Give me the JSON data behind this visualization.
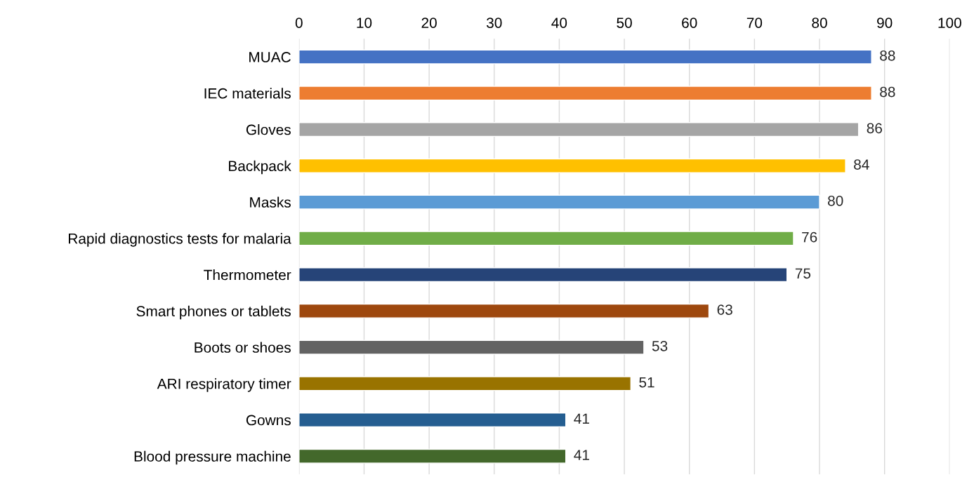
{
  "chart_data": {
    "type": "bar",
    "orientation": "horizontal",
    "categories": [
      "MUAC",
      "IEC materials",
      "Gloves",
      "Backpack",
      "Masks",
      "Rapid diagnostics tests for malaria",
      "Thermometer",
      "Smart phones or tablets",
      "Boots or shoes",
      "ARI respiratory timer",
      "Gowns",
      "Blood pressure machine"
    ],
    "values": [
      88,
      88,
      86,
      84,
      80,
      76,
      75,
      63,
      53,
      51,
      41,
      41
    ],
    "colors": [
      "#4472c4",
      "#ed7d31",
      "#a5a5a5",
      "#ffc000",
      "#5b9bd5",
      "#70ad47",
      "#264478",
      "#9e480e",
      "#636363",
      "#997300",
      "#255e91",
      "#43682b"
    ],
    "xlim": [
      0,
      100
    ],
    "xticks": [
      0,
      10,
      20,
      30,
      40,
      50,
      60,
      70,
      80,
      90,
      100
    ],
    "grid": "x",
    "data_labels": true,
    "legend": false
  }
}
